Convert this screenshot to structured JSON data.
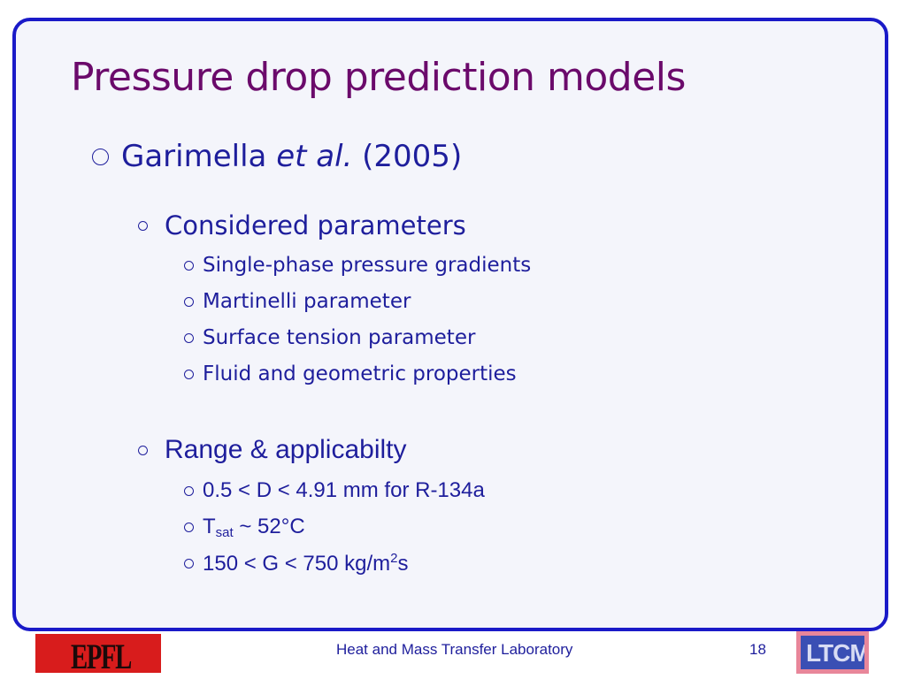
{
  "slide": {
    "title": "Pressure drop prediction models",
    "level1": {
      "author": "Garimella ",
      "etal": "et al.",
      "year": " (2005)"
    },
    "section1": {
      "heading": "Considered parameters",
      "items": [
        "Single-phase pressure gradients",
        "Martinelli parameter",
        "Surface tension parameter",
        "Fluid and geometric properties"
      ]
    },
    "section2": {
      "heading": "Range & applicabilty",
      "item1": "0.5 < D < 4.91 mm for R-134a",
      "item2": {
        "base": "T",
        "sub": "sat",
        "rest": " ~ 52°C"
      },
      "item3": {
        "base": "150 < G < 750 kg/m",
        "sup": "2",
        "rest": "s"
      }
    }
  },
  "footer": {
    "lab": "Heat and Mass Transfer Laboratory",
    "page": "18",
    "epfl_logo_text": "EPFL",
    "ltcm_logo_text": "LTCM"
  },
  "colors": {
    "title": "#6b0a6b",
    "text": "#1e1e9c",
    "frame_border": "#1a1ac8",
    "epfl_red": "#d81c1c"
  }
}
